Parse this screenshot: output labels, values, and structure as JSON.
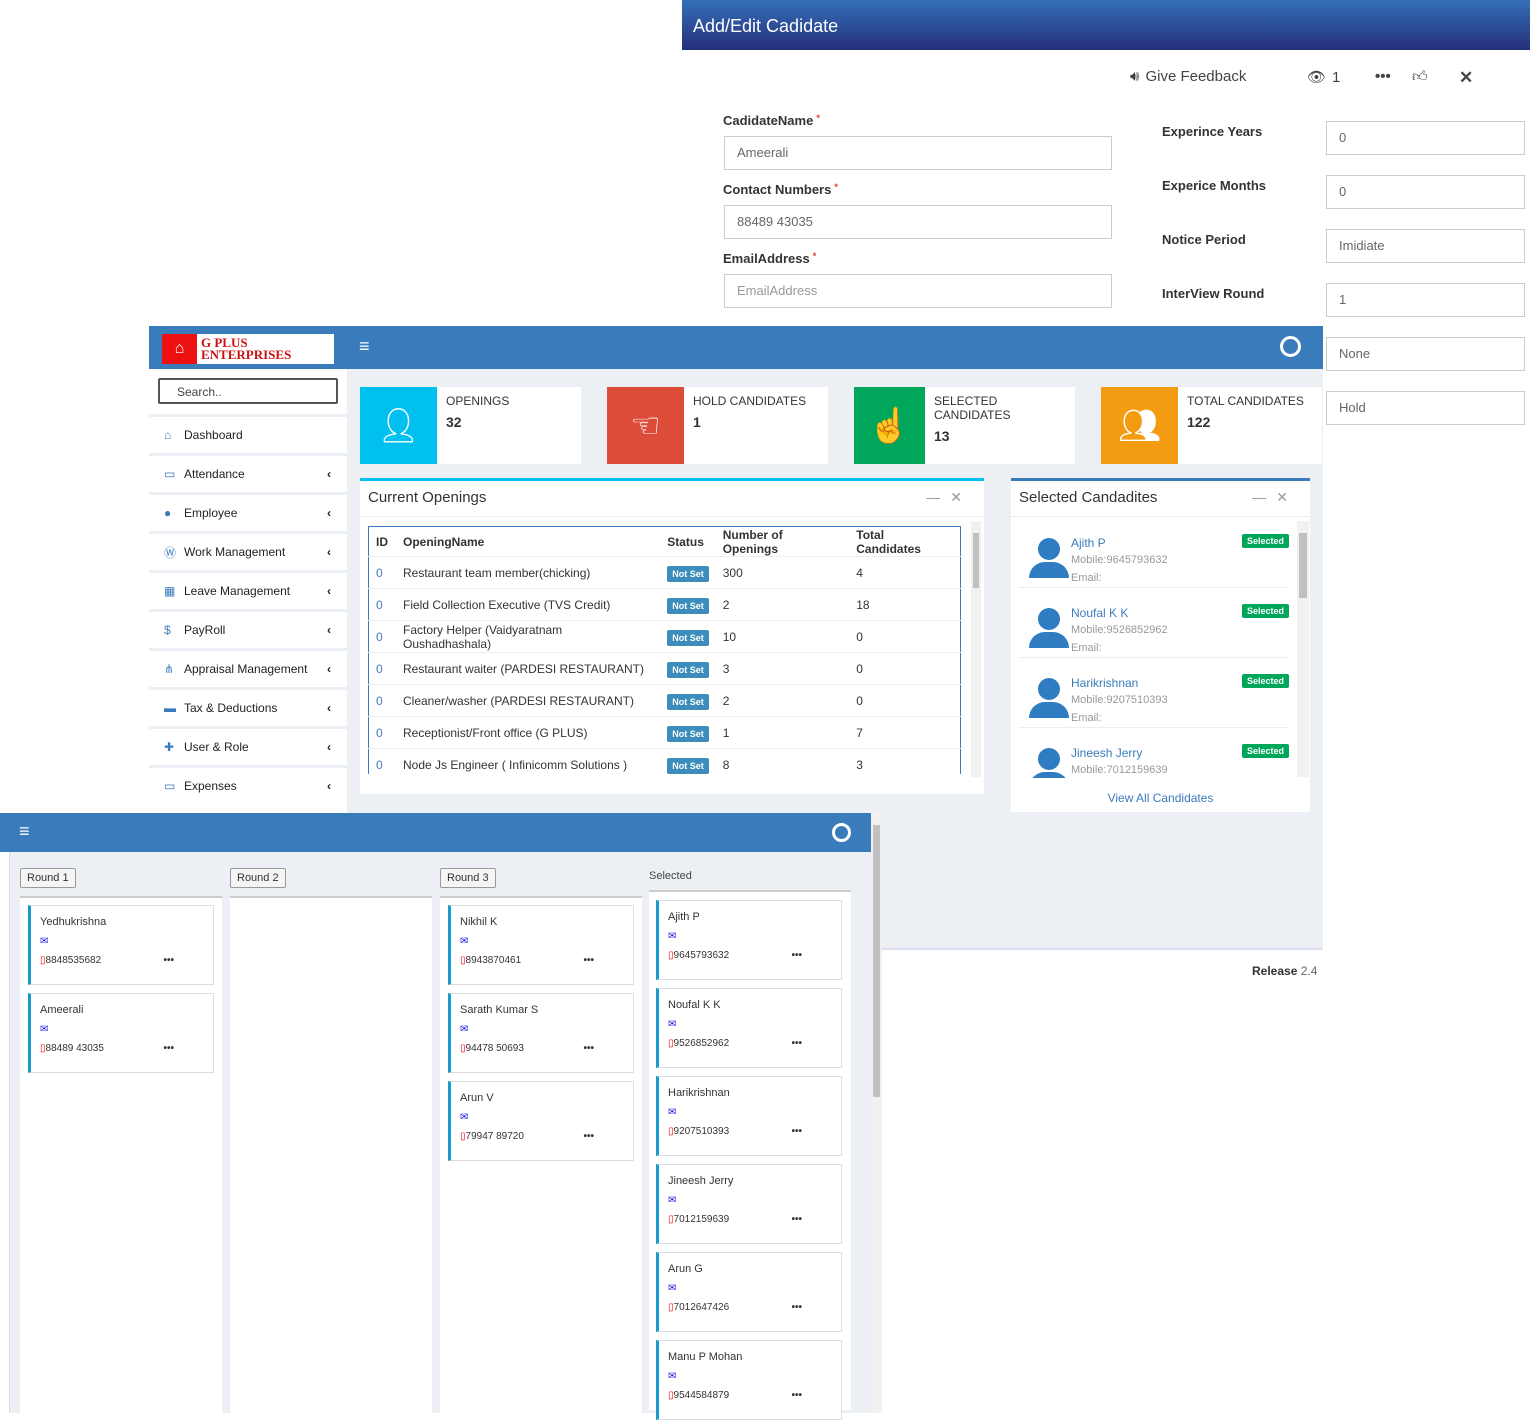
{
  "form": {
    "title": "Add/Edit Cadidate",
    "toolbar": {
      "feedback": "Give Feedback",
      "views": "1"
    },
    "fields_left": [
      {
        "label": "CadidateName",
        "value": "Ameerali"
      },
      {
        "label": "Contact Numbers",
        "value": "88489 43035"
      },
      {
        "label": "EmailAddress",
        "placeholder": "EmailAddress"
      }
    ],
    "fields_right": [
      {
        "label": "Experince Years",
        "value": "0"
      },
      {
        "label": "Experice Months",
        "value": "0"
      },
      {
        "label": "Notice Period",
        "value": "Imidiate"
      },
      {
        "label": "InterView Round",
        "value": "1"
      }
    ],
    "extra_inputs": [
      "None",
      "Hold"
    ]
  },
  "dashboard": {
    "logo": {
      "line1": "G PLUS",
      "line2": "ENTERPRISES"
    },
    "search_placeholder": "Search..",
    "menu": [
      {
        "label": "Dashboard",
        "icon": "home-icon"
      },
      {
        "label": "Attendance",
        "icon": "inbox-icon"
      },
      {
        "label": "Employee",
        "icon": "user-icon"
      },
      {
        "label": "Work Management",
        "icon": "wordpress-icon"
      },
      {
        "label": "Leave Management",
        "icon": "calendar-icon"
      },
      {
        "label": "PayRoll",
        "icon": "money-icon"
      },
      {
        "label": "Appraisal Management",
        "icon": "sitemap-icon"
      },
      {
        "label": "Tax & Deductions",
        "icon": "money-bill-icon"
      },
      {
        "label": "User & Role",
        "icon": "user-plus-icon"
      },
      {
        "label": "Expenses",
        "icon": "credit-card-icon"
      }
    ],
    "stats": [
      {
        "label": "OPENINGS",
        "value": "32",
        "color": "#00c0ef",
        "icon": "user-icon"
      },
      {
        "label": "HOLD CANDIDATES",
        "value": "1",
        "color": "#dd4b39",
        "icon": "hand-point-icon"
      },
      {
        "label": "SELECTED CANDIDATES",
        "value": "13",
        "color": "#00a65a",
        "icon": "hand-pointer-icon"
      },
      {
        "label": "TOTAL CANDIDATES",
        "value": "122",
        "color": "#f39c12",
        "icon": "users-icon"
      }
    ],
    "openings": {
      "title": "Current Openings",
      "columns": [
        "ID",
        "OpeningName",
        "Status",
        "Number of Openings",
        "Total Candidates"
      ],
      "rows": [
        [
          "0",
          "Restaurant team member(chicking)",
          "Not Set",
          "300",
          "4"
        ],
        [
          "0",
          "Field Collection Executive (TVS Credit)",
          "Not Set",
          "2",
          "18"
        ],
        [
          "0",
          "Factory Helper (Vaidyaratnam Oushadhashala)",
          "Not Set",
          "10",
          "0"
        ],
        [
          "0",
          "Restaurant waiter (PARDESI RESTAURANT)",
          "Not Set",
          "3",
          "0"
        ],
        [
          "0",
          "Cleaner/washer (PARDESI RESTAURANT)",
          "Not Set",
          "2",
          "0"
        ],
        [
          "0",
          "Receptionist/Front office (G PLUS)",
          "Not Set",
          "1",
          "7"
        ],
        [
          "0",
          "Node Js Engineer ( Infinicomm Solutions )",
          "Not Set",
          "8",
          "3"
        ]
      ]
    },
    "selected": {
      "title": "Selected Candadites",
      "badge": "Selected",
      "view_all": "View All Candidates",
      "items": [
        {
          "name": "Ajith P",
          "mobile": "Mobile:9645793632",
          "email": "Email:"
        },
        {
          "name": "Noufal K K",
          "mobile": "Mobile:9526852962",
          "email": "Email:"
        },
        {
          "name": "Harikrishnan",
          "mobile": "Mobile:9207510393",
          "email": "Email:"
        },
        {
          "name": "Jineesh Jerry",
          "mobile": "Mobile:7012159639",
          "email": "Email:"
        }
      ]
    },
    "footer": {
      "release_label": "Release",
      "version": "2.4"
    }
  },
  "kanban": {
    "columns": [
      {
        "label": "Round 1",
        "cards": [
          {
            "name": "Yedhukrishna",
            "phone": "8848535682"
          },
          {
            "name": "Ameerali",
            "phone": "88489 43035"
          }
        ]
      },
      {
        "label": "Round 2",
        "cards": []
      },
      {
        "label": "Round 3",
        "cards": [
          {
            "name": "Nikhil K",
            "phone": "8943870461"
          },
          {
            "name": "Sarath Kumar S",
            "phone": "94478 50693"
          },
          {
            "name": "Arun V",
            "phone": "79947 89720"
          }
        ]
      },
      {
        "label": "Selected",
        "cards": [
          {
            "name": "Ajith P",
            "phone": "9645793632"
          },
          {
            "name": "Noufal K K",
            "phone": "9526852962"
          },
          {
            "name": "Harikrishnan",
            "phone": "9207510393"
          },
          {
            "name": "Jineesh Jerry",
            "phone": "7012159639"
          },
          {
            "name": "Arun G",
            "phone": "7012647426"
          },
          {
            "name": "Manu P Mohan",
            "phone": "9544584879"
          }
        ]
      }
    ]
  }
}
